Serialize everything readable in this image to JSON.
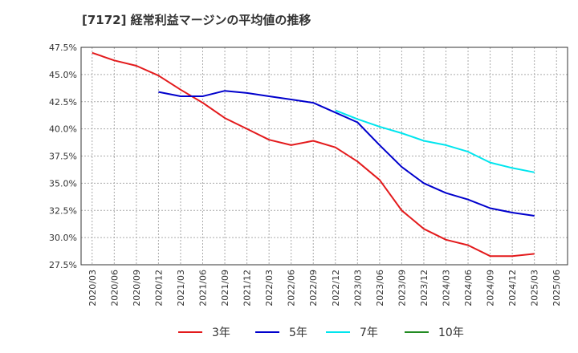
{
  "chart_data": {
    "type": "line",
    "title": "[7172]  経常利益マージンの平均値の推移",
    "ylim": [
      27.5,
      47.5
    ],
    "y_ticks": [
      "47.5%",
      "45.0%",
      "42.5%",
      "40.0%",
      "37.5%",
      "35.0%",
      "32.5%",
      "30.0%",
      "27.5%"
    ],
    "x_ticks": [
      "2020/03",
      "2020/06",
      "2020/09",
      "2020/12",
      "2021/03",
      "2021/06",
      "2021/09",
      "2021/12",
      "2022/03",
      "2022/06",
      "2022/09",
      "2022/12",
      "2023/03",
      "2023/06",
      "2023/09",
      "2023/12",
      "2024/03",
      "2024/06",
      "2024/09",
      "2024/12",
      "2025/03",
      "2025/06"
    ],
    "grid": true,
    "legend_position": "bottom",
    "series": [
      {
        "name": "3年",
        "color": "#e31a1c",
        "x": [
          "2020/03",
          "2020/06",
          "2020/09",
          "2020/12",
          "2021/03",
          "2021/06",
          "2021/09",
          "2021/12",
          "2022/03",
          "2022/06",
          "2022/09",
          "2022/12",
          "2023/03",
          "2023/06",
          "2023/09",
          "2023/12",
          "2024/03",
          "2024/06",
          "2024/09",
          "2024/12",
          "2025/03"
        ],
        "values": [
          47.0,
          46.3,
          45.8,
          44.9,
          43.6,
          42.4,
          41.0,
          40.0,
          39.0,
          38.5,
          38.9,
          38.3,
          37.0,
          35.3,
          32.5,
          30.8,
          29.8,
          29.3,
          28.3,
          28.3,
          28.5
        ]
      },
      {
        "name": "5年",
        "color": "#0000cc",
        "x": [
          "2020/12",
          "2021/03",
          "2021/06",
          "2021/09",
          "2021/12",
          "2022/03",
          "2022/06",
          "2022/09",
          "2022/12",
          "2023/03",
          "2023/06",
          "2023/09",
          "2023/12",
          "2024/03",
          "2024/06",
          "2024/09",
          "2024/12",
          "2025/03"
        ],
        "values": [
          43.4,
          43.0,
          43.0,
          43.5,
          43.3,
          43.0,
          42.7,
          42.4,
          41.5,
          40.6,
          38.5,
          36.5,
          35.0,
          34.1,
          33.5,
          32.7,
          32.3,
          32.0
        ]
      },
      {
        "name": "7年",
        "color": "#00e5ee",
        "x": [
          "2022/12",
          "2023/03",
          "2023/06",
          "2023/09",
          "2023/12",
          "2024/03",
          "2024/06",
          "2024/09",
          "2024/12",
          "2025/03"
        ],
        "values": [
          41.7,
          40.9,
          40.2,
          39.6,
          38.9,
          38.5,
          37.9,
          36.9,
          36.4,
          36.0
        ]
      },
      {
        "name": "10年",
        "color": "#228b22",
        "x": [],
        "values": []
      }
    ]
  }
}
